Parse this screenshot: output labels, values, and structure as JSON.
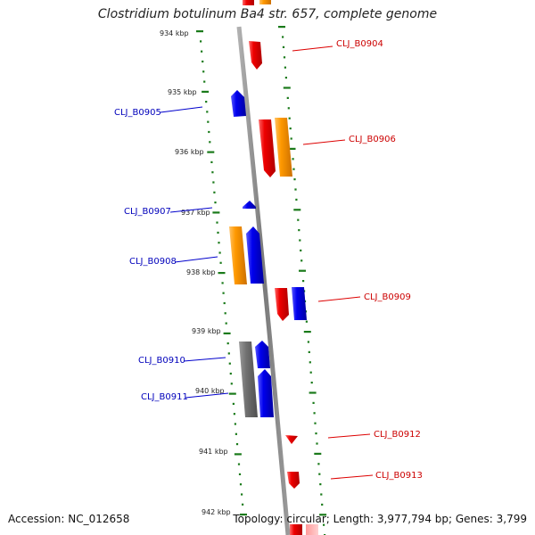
{
  "title": "Clostridium botulinum Ba4 str. 657, complete genome",
  "footer": {
    "accession": "Accession: NC_012658",
    "topology": "Topology: circular; Length: 3,977,794 bp; Genes: 3,799"
  },
  "colors": {
    "forward": "#e00000",
    "reverse": "#0000dd",
    "orange": "#ff9900",
    "gray": "#707070",
    "backbone": "#8a8a8a",
    "tick": "#1a7a1a",
    "label_forward": "#cc0000",
    "label_reverse": "#0000bb"
  },
  "ticks": [
    "934 kbp",
    "935 kbp",
    "936 kbp",
    "937 kbp",
    "938 kbp",
    "939 kbp",
    "940 kbp",
    "941 kbp",
    "942 kbp"
  ],
  "gene_labels": [
    {
      "text": "CLJ_B0904",
      "strand": "forward"
    },
    {
      "text": "CLJ_B0905",
      "strand": "reverse"
    },
    {
      "text": "CLJ_B0906",
      "strand": "forward"
    },
    {
      "text": "CLJ_B0907",
      "strand": "reverse"
    },
    {
      "text": "CLJ_B0908",
      "strand": "reverse"
    },
    {
      "text": "CLJ_B0909",
      "strand": "forward"
    },
    {
      "text": "CLJ_B0910",
      "strand": "reverse"
    },
    {
      "text": "CLJ_B0911",
      "strand": "reverse"
    },
    {
      "text": "CLJ_B0912",
      "strand": "forward"
    },
    {
      "text": "CLJ_B0913",
      "strand": "forward"
    }
  ]
}
